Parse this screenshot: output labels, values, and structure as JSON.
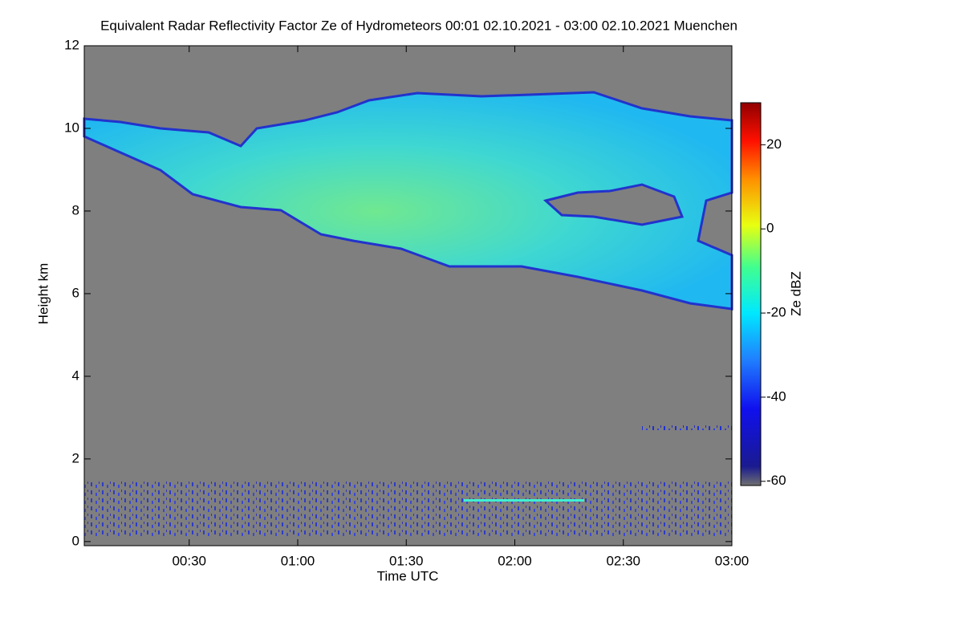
{
  "chart_data": {
    "type": "heatmap",
    "title": "Equivalent Radar Reflectivity Factor Ze of Hydrometeors   00:01 02.10.2021 - 03:00 02.10.2021 Muenchen",
    "x_label": "Time UTC",
    "y_label": "Height km",
    "xlim": [
      1,
      180
    ],
    "xticks": [
      {
        "value": 30,
        "label": "00:30"
      },
      {
        "value": 60,
        "label": "01:00"
      },
      {
        "value": 90,
        "label": "01:30"
      },
      {
        "value": 120,
        "label": "02:00"
      },
      {
        "value": 150,
        "label": "02:30"
      },
      {
        "value": 180,
        "label": "03:00"
      }
    ],
    "ylim": [
      -0.1,
      12
    ],
    "yticks": [
      0,
      2,
      4,
      6,
      8,
      10,
      12
    ],
    "colorbar": {
      "label": "Ze dBZ",
      "zlim": [
        -61,
        30
      ],
      "ticks": [
        -60,
        -40,
        -20,
        0,
        20
      ]
    }
  }
}
